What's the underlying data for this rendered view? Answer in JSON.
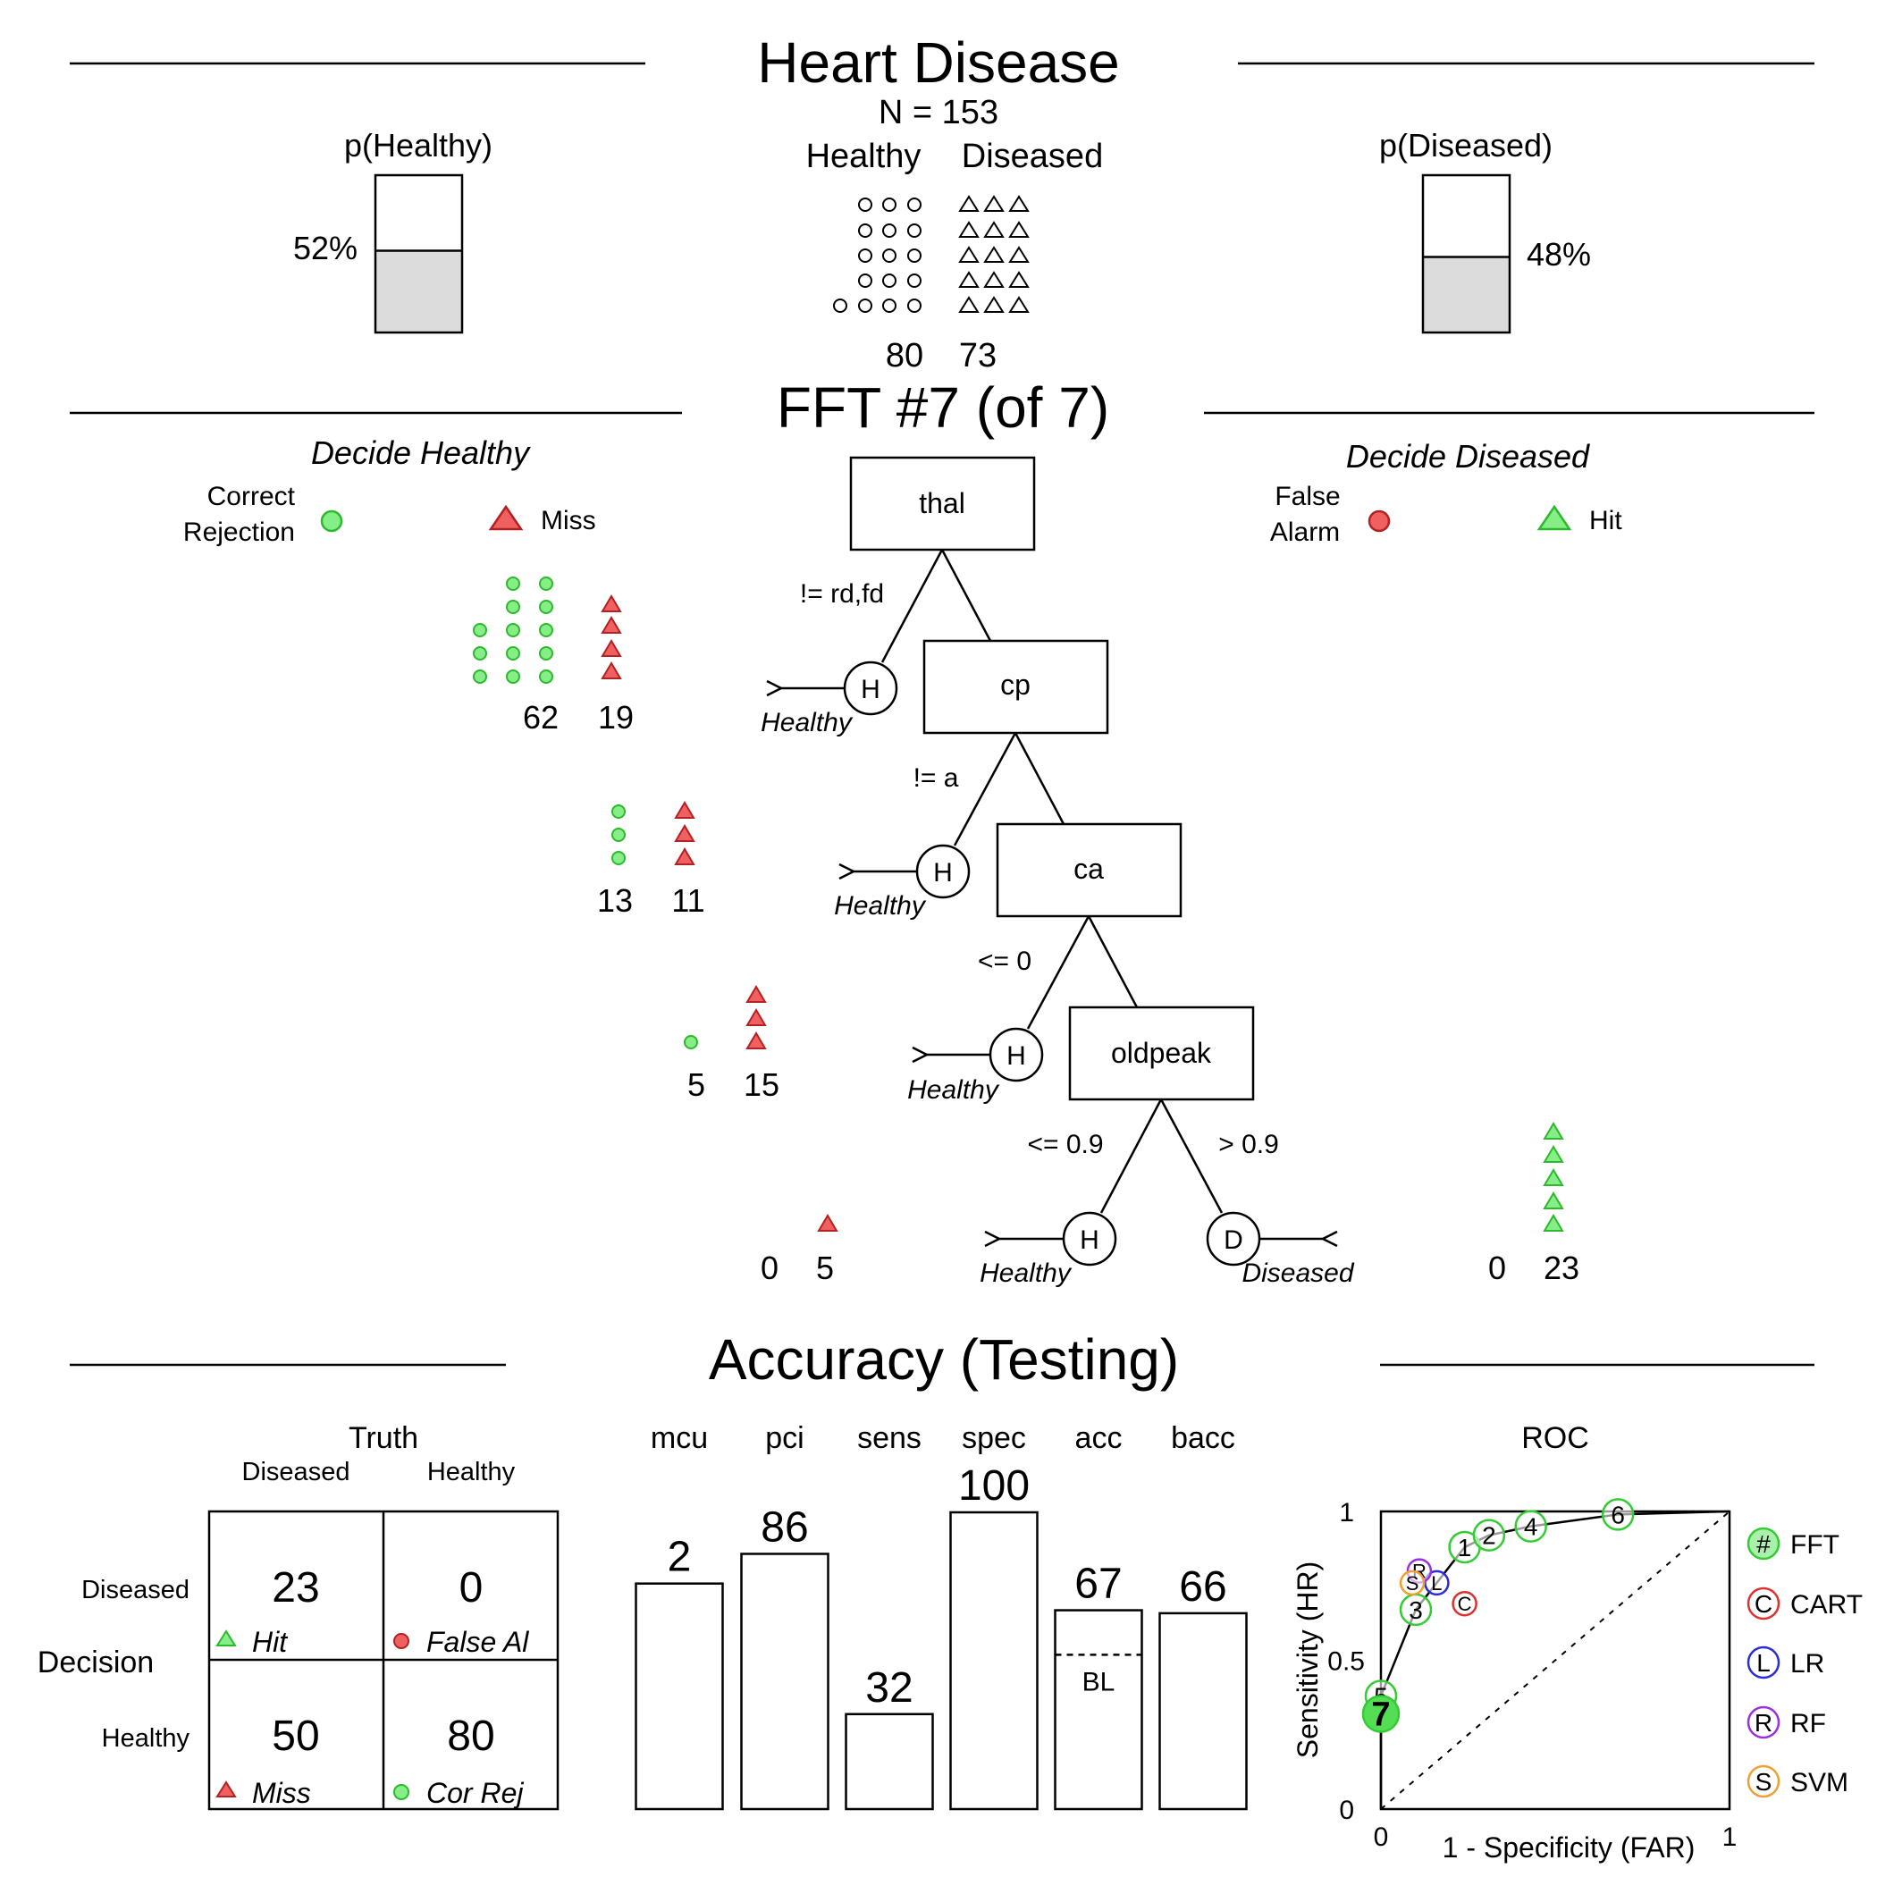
{
  "header": {
    "title": "Heart Disease",
    "n_label": "N = 153",
    "class_healthy": "Healthy",
    "class_diseased": "Diseased",
    "count_healthy": "80",
    "count_diseased": "73",
    "p_healthy_label": "p(Healthy)",
    "p_diseased_label": "p(Diseased)",
    "p_healthy_value": "52%",
    "p_diseased_value": "48%",
    "p_healthy_fraction": 0.52,
    "p_diseased_fraction": 0.48
  },
  "tree": {
    "title": "FFT #7 (of 7)",
    "decide_healthy": "Decide Healthy",
    "decide_diseased": "Decide Diseased",
    "legend": {
      "correct_rejection_1": "Correct",
      "correct_rejection_2": "Rejection",
      "miss": "Miss",
      "false_alarm_1": "False",
      "false_alarm_2": "Alarm",
      "hit": "Hit"
    },
    "nodes": [
      {
        "cue": "thal",
        "condition": "!= rd,fd",
        "exit": "H",
        "exit_label": "Healthy",
        "cr": "62",
        "miss": "19"
      },
      {
        "cue": "cp",
        "condition": "!= a",
        "exit": "H",
        "exit_label": "Healthy",
        "cr": "13",
        "miss": "11"
      },
      {
        "cue": "ca",
        "condition": "<= 0",
        "exit": "H",
        "exit_label": "Healthy",
        "cr": "5",
        "miss": "15"
      },
      {
        "cue": "oldpeak",
        "condition": "<= 0.9",
        "condition_right": "> 0.9",
        "exit": "H",
        "exit_label": "Healthy",
        "exit_right": "D",
        "exit_right_label": "Diseased",
        "cr": "0",
        "miss": "5",
        "fa": "0",
        "hit": "23"
      }
    ]
  },
  "accuracy": {
    "title": "Accuracy (Testing)",
    "truth_label": "Truth",
    "decision_label": "Decision",
    "col_diseased": "Diseased",
    "col_healthy": "Healthy",
    "row_diseased": "Diseased",
    "row_healthy": "Healthy",
    "cells": {
      "hit": {
        "value": "23",
        "label": "Hit"
      },
      "fa": {
        "value": "0",
        "label": "False Al"
      },
      "miss": {
        "value": "50",
        "label": "Miss"
      },
      "cr": {
        "value": "80",
        "label": "Cor Rej"
      }
    },
    "baseline_label": "BL"
  },
  "chart_data": [
    {
      "type": "bar",
      "categories": [
        "mcu",
        "pci",
        "sens",
        "spec",
        "acc",
        "bacc"
      ],
      "values": [
        2,
        86,
        32,
        100,
        67,
        66
      ],
      "bar_heights_pct": [
        76,
        86,
        32,
        100,
        67,
        66
      ],
      "baseline_acc": 52,
      "ylim": [
        0,
        100
      ]
    },
    {
      "type": "scatter",
      "title": "ROC",
      "xlabel": "1 - Specificity (FAR)",
      "ylabel": "Sensitivity (HR)",
      "xlim": [
        0,
        1
      ],
      "ylim": [
        0,
        1
      ],
      "x_ticks": [
        "0",
        "1"
      ],
      "y_ticks": [
        "0",
        "0.5",
        "1"
      ],
      "fft_curve": [
        [
          0,
          0
        ],
        [
          0,
          0.32
        ],
        [
          0,
          0.38
        ],
        [
          0.1,
          0.67
        ],
        [
          0.24,
          0.88
        ],
        [
          0.31,
          0.92
        ],
        [
          0.43,
          0.95
        ],
        [
          0.68,
          0.99
        ],
        [
          1,
          1
        ]
      ],
      "points": [
        {
          "label": "1",
          "x": 0.24,
          "y": 0.88,
          "group": "FFT"
        },
        {
          "label": "2",
          "x": 0.31,
          "y": 0.92,
          "group": "FFT"
        },
        {
          "label": "3",
          "x": 0.1,
          "y": 0.67,
          "group": "FFT"
        },
        {
          "label": "4",
          "x": 0.43,
          "y": 0.95,
          "group": "FFT"
        },
        {
          "label": "5",
          "x": 0.0,
          "y": 0.38,
          "group": "FFT"
        },
        {
          "label": "6",
          "x": 0.68,
          "y": 0.99,
          "group": "FFT"
        },
        {
          "label": "C",
          "x": 0.24,
          "y": 0.69,
          "group": "CART"
        },
        {
          "label": "L",
          "x": 0.16,
          "y": 0.76,
          "group": "LR"
        },
        {
          "label": "R",
          "x": 0.11,
          "y": 0.8,
          "group": "RF"
        },
        {
          "label": "S",
          "x": 0.09,
          "y": 0.76,
          "group": "SVM"
        },
        {
          "label": "7",
          "x": 0.0,
          "y": 0.32,
          "group": "FFT-selected"
        }
      ],
      "legend": [
        {
          "symbol": "#",
          "name": "FFT",
          "color": "#33cc33"
        },
        {
          "symbol": "C",
          "name": "CART",
          "color": "#e03030"
        },
        {
          "symbol": "L",
          "name": "LR",
          "color": "#2b2bdb"
        },
        {
          "symbol": "R",
          "name": "RF",
          "color": "#9b30e0"
        },
        {
          "symbol": "S",
          "name": "SVM",
          "color": "#f0a030"
        }
      ]
    }
  ],
  "colors": {
    "green_fill": "#86ee86",
    "green_stroke": "#2db82d",
    "red_fill": "#f06060",
    "red_stroke": "#b22222",
    "gray_fill": "#dcdcdc"
  }
}
